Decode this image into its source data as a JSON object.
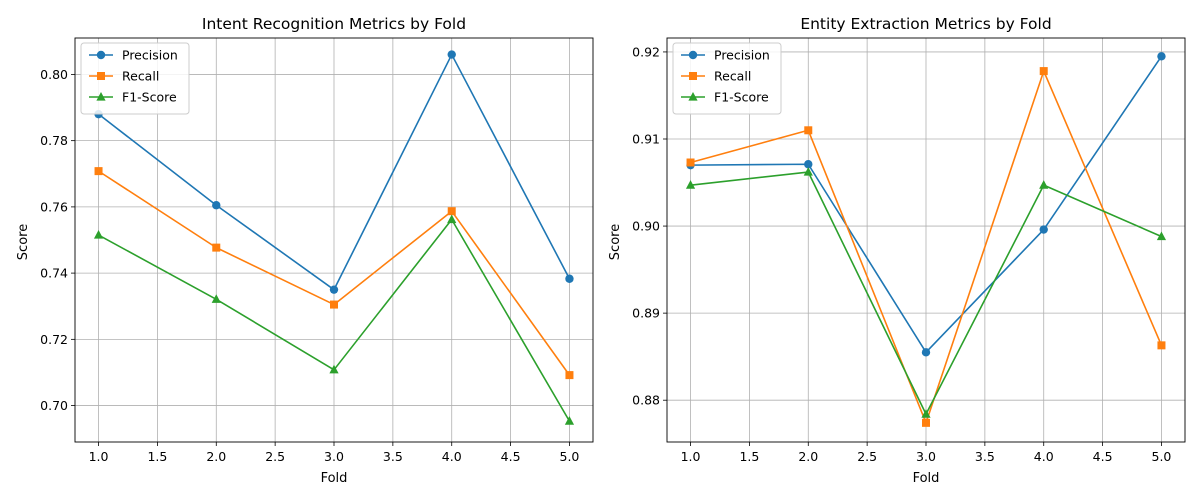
{
  "chart_data": [
    {
      "type": "line",
      "title": "Intent Recognition Metrics by Fold",
      "xlabel": "Fold",
      "ylabel": "Score",
      "x": [
        1.0,
        2.0,
        3.0,
        4.0,
        5.0
      ],
      "xlim": [
        0.8,
        5.2
      ],
      "ylim": [
        0.689,
        0.811
      ],
      "xticks": [
        1.0,
        1.5,
        2.0,
        2.5,
        3.0,
        3.5,
        4.0,
        4.5,
        5.0
      ],
      "xtick_labels": [
        "1.0",
        "1.5",
        "2.0",
        "2.5",
        "3.0",
        "3.5",
        "4.0",
        "4.5",
        "5.0"
      ],
      "yticks": [
        0.7,
        0.72,
        0.74,
        0.76,
        0.78,
        0.8
      ],
      "ytick_labels": [
        "0.70",
        "0.72",
        "0.74",
        "0.76",
        "0.78",
        "0.80"
      ],
      "grid": true,
      "legend_position": "upper-left",
      "series": [
        {
          "name": "Precision",
          "color": "#1f77b4",
          "marker": "circle",
          "values": [
            0.788,
            0.7605,
            0.735,
            0.806,
            0.7383
          ]
        },
        {
          "name": "Recall",
          "color": "#ff7f0e",
          "marker": "square",
          "values": [
            0.7708,
            0.7477,
            0.7305,
            0.7587,
            0.7092
          ]
        },
        {
          "name": "F1-Score",
          "color": "#2ca02c",
          "marker": "triangle",
          "values": [
            0.7515,
            0.7321,
            0.7108,
            0.7562,
            0.6953
          ]
        }
      ]
    },
    {
      "type": "line",
      "title": "Entity Extraction Metrics by Fold",
      "xlabel": "Fold",
      "ylabel": "Score",
      "x": [
        1.0,
        2.0,
        3.0,
        4.0,
        5.0
      ],
      "xlim": [
        0.8,
        5.2
      ],
      "ylim": [
        0.8752,
        0.9216
      ],
      "xticks": [
        1.0,
        1.5,
        2.0,
        2.5,
        3.0,
        3.5,
        4.0,
        4.5,
        5.0
      ],
      "xtick_labels": [
        "1.0",
        "1.5",
        "2.0",
        "2.5",
        "3.0",
        "3.5",
        "4.0",
        "4.5",
        "5.0"
      ],
      "yticks": [
        0.88,
        0.89,
        0.9,
        0.91,
        0.92
      ],
      "ytick_labels": [
        "0.88",
        "0.89",
        "0.90",
        "0.91",
        "0.92"
      ],
      "grid": true,
      "legend_position": "upper-left",
      "series": [
        {
          "name": "Precision",
          "color": "#1f77b4",
          "marker": "circle",
          "values": [
            0.907,
            0.9071,
            0.8855,
            0.8996,
            0.9195
          ]
        },
        {
          "name": "Recall",
          "color": "#ff7f0e",
          "marker": "square",
          "values": [
            0.9073,
            0.911,
            0.8774,
            0.9178,
            0.8863
          ]
        },
        {
          "name": "F1-Score",
          "color": "#2ca02c",
          "marker": "triangle",
          "values": [
            0.9047,
            0.9062,
            0.8784,
            0.9047,
            0.8988
          ]
        }
      ]
    }
  ]
}
